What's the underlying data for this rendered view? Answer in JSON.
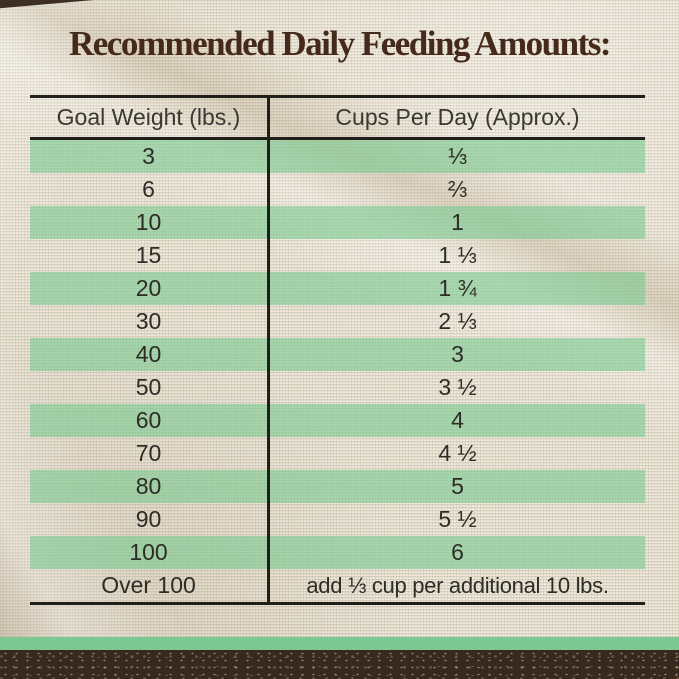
{
  "title": "Recommended Daily Feeding Amounts:",
  "chart_data": {
    "type": "table",
    "title": "Recommended Daily Feeding Amounts:",
    "columns": [
      "Goal Weight (lbs.)",
      "Cups Per Day (Approx.)"
    ],
    "rows": [
      [
        "3",
        "⅓"
      ],
      [
        "6",
        "⅔"
      ],
      [
        "10",
        "1"
      ],
      [
        "15",
        "1 ⅓"
      ],
      [
        "20",
        "1 ¾"
      ],
      [
        "30",
        "2 ⅓"
      ],
      [
        "40",
        "3"
      ],
      [
        "50",
        "3 ½"
      ],
      [
        "60",
        "4"
      ],
      [
        "70",
        "4 ½"
      ],
      [
        "80",
        "5"
      ],
      [
        "90",
        "5 ½"
      ],
      [
        "100",
        "6"
      ],
      [
        "Over 100",
        "add ⅓ cup per additional 10 lbs."
      ]
    ],
    "layout_hints": {
      "striped_rows": "odd rows highlighted green starting with first data row",
      "column_divider": true,
      "horizontal_rules": [
        "above header",
        "below header",
        "below last row"
      ]
    }
  },
  "colors": {
    "stripe_green": "rgba(125,201,146,0.62)",
    "footer_green": "#7cc892",
    "footer_brown": "#38291f",
    "title_brown": "#45291a",
    "line_dark": "#201e19",
    "text_dark": "#2d2c27",
    "linen_base": "#e8e2d3"
  }
}
